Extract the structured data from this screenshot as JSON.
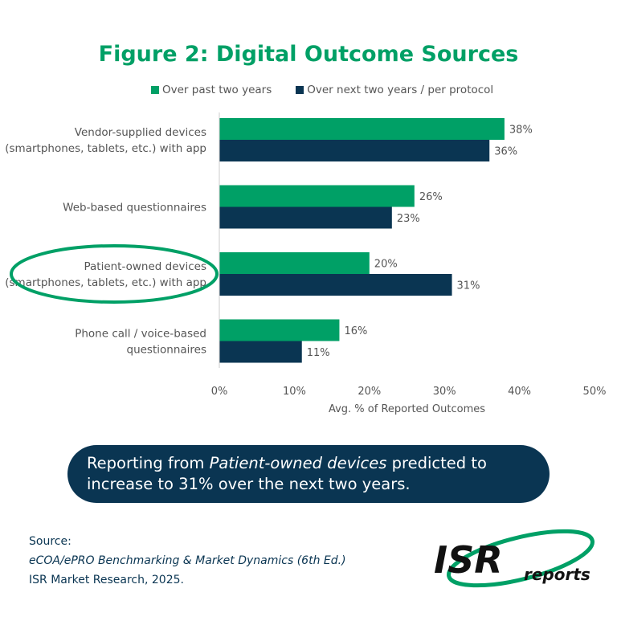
{
  "chart_data": {
    "type": "bar",
    "orientation": "horizontal",
    "title": "Figure 2: Digital Outcome Sources",
    "xlabel": "Avg. % of Reported Outcomes",
    "xlim": [
      0,
      50
    ],
    "xticks": [
      "0%",
      "10%",
      "20%",
      "30%",
      "40%",
      "50%"
    ],
    "grid": false,
    "legend_position": "top",
    "categories": [
      [
        "Vendor-supplied devices",
        "(smartphones, tablets, etc.) with app"
      ],
      [
        "Web-based questionnaires"
      ],
      [
        "Patient-owned devices",
        "(smartphones, tablets, etc.) with app"
      ],
      [
        "Phone call / voice-based",
        "questionnaires"
      ]
    ],
    "series": [
      {
        "name": "Over past two years",
        "color": "#00a066",
        "values": [
          38,
          26,
          20,
          16
        ]
      },
      {
        "name": "Over next two years / per protocol",
        "color": "#0a3552",
        "values": [
          36,
          23,
          31,
          11
        ]
      }
    ],
    "highlighted_category": 2
  },
  "callout": {
    "before": "Reporting from ",
    "emphasis": "Patient-owned devices",
    "after": " predicted to increase to 31% over the next two years."
  },
  "source": {
    "label": "Source:",
    "publication": "eCOA/ePRO Benchmarking & Market Dynamics (6th Ed.)",
    "publisher": "ISR Market Research, 2025."
  },
  "logo": {
    "text": "ISR reports",
    "color": "#00a066"
  }
}
